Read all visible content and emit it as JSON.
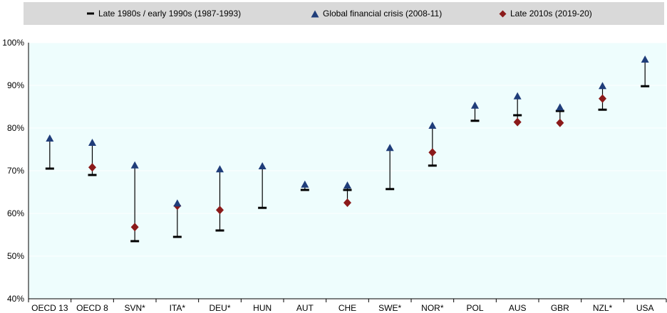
{
  "chart_data": {
    "type": "scatter",
    "title": "",
    "xlabel": "",
    "ylabel": "",
    "ylim": [
      40,
      100
    ],
    "yticks": [
      40,
      50,
      60,
      70,
      80,
      90,
      100
    ],
    "ytick_labels": [
      "40%",
      "50%",
      "60%",
      "70%",
      "80%",
      "90%",
      "100%"
    ],
    "grid": "horizontal",
    "legend_position": "top",
    "categories": [
      "OECD 13",
      "OECD 8",
      "SVN*",
      "ITA*",
      "DEU*",
      "HUN",
      "AUT",
      "CHE",
      "SWE*",
      "NOR*",
      "POL",
      "AUS",
      "GBR",
      "NZL*",
      "USA"
    ],
    "series": [
      {
        "name": "Late 1980s / early 1990s (1987-1993)",
        "marker": "dash",
        "color": "#000000",
        "values": [
          70.5,
          69.0,
          53.5,
          54.5,
          56.0,
          61.3,
          65.5,
          65.5,
          65.7,
          71.2,
          81.7,
          83.0,
          84.0,
          84.3,
          89.8
        ]
      },
      {
        "name": "Global financial crisis (2008-11)",
        "marker": "triangle",
        "color": "#1f3d7a",
        "values": [
          77.5,
          76.5,
          71.2,
          62.3,
          70.3,
          71.0,
          66.7,
          66.5,
          75.3,
          80.5,
          85.2,
          87.4,
          84.8,
          89.8,
          96.0
        ]
      },
      {
        "name": "Late 2010s (2019-20)",
        "marker": "diamond",
        "color": "#8b1a1a",
        "values": [
          null,
          70.8,
          56.8,
          61.8,
          60.8,
          null,
          null,
          62.5,
          null,
          74.3,
          null,
          81.4,
          81.2,
          86.9,
          null
        ]
      }
    ]
  },
  "colors": {
    "plot_background": "#eefdfd",
    "legend_background": "#d9d9d9",
    "gridline": "#ffffff",
    "range_line": "#000000"
  }
}
